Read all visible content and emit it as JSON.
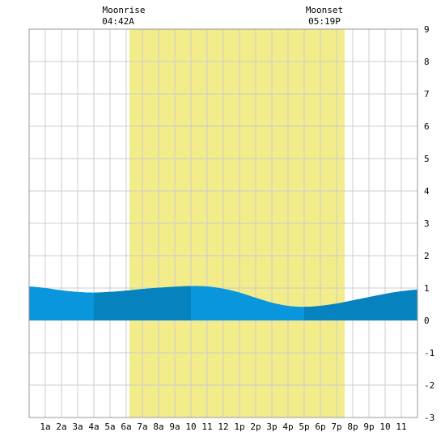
{
  "chart_data": {
    "type": "area",
    "title": "",
    "xlabel": "",
    "ylabel": "",
    "xlim": [
      0,
      24
    ],
    "ylim": [
      -3,
      9
    ],
    "x_ticks": [
      "1a",
      "2a",
      "3a",
      "4a",
      "5a",
      "6a",
      "7a",
      "8a",
      "9a",
      "10",
      "11",
      "12",
      "1p",
      "2p",
      "3p",
      "4p",
      "5p",
      "6p",
      "7p",
      "8p",
      "9p",
      "10",
      "11"
    ],
    "y_ticks": [
      "-3",
      "-2",
      "-1",
      "0",
      "1",
      "2",
      "3",
      "4",
      "5",
      "6",
      "7",
      "8",
      "9"
    ],
    "daylight_band": {
      "start_hour": 6.2,
      "end_hour": 19.5,
      "color": "#f2ec8a"
    },
    "moon_events": [
      {
        "label": "Moonrise",
        "time": "04:42A",
        "hour": 4.7
      },
      {
        "label": "Moonset",
        "time": "05:19P",
        "hour": 17.32
      }
    ],
    "series": [
      {
        "x": [
          0,
          1,
          2,
          3,
          4,
          5,
          6,
          7,
          8,
          9,
          10,
          11,
          12,
          13,
          14,
          15,
          16,
          17,
          18,
          19,
          20,
          21,
          22,
          23,
          24
        ],
        "values": [
          1.05,
          1.0,
          0.93,
          0.88,
          0.86,
          0.88,
          0.92,
          0.97,
          1.01,
          1.04,
          1.06,
          1.05,
          0.98,
          0.86,
          0.7,
          0.55,
          0.45,
          0.42,
          0.45,
          0.52,
          0.62,
          0.72,
          0.82,
          0.9,
          0.95
        ]
      }
    ],
    "fill_colors": {
      "light": "#0a96dc",
      "dark": "#0682bf"
    },
    "dark_bands": [
      [
        4,
        10
      ],
      [
        17,
        24
      ]
    ]
  }
}
